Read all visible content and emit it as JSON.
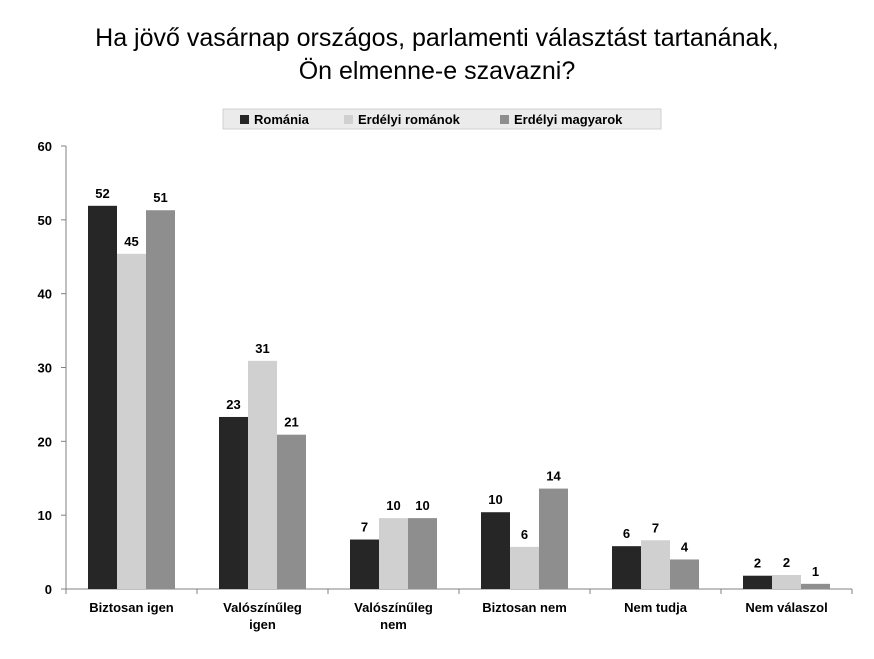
{
  "chart_data": {
    "type": "bar",
    "title_lines": [
      "Ha jövő vasárnap országos, parlamenti választást tartanának,",
      "Ön elmenne-e szavazni?"
    ],
    "categories": [
      [
        "Biztosan igen"
      ],
      [
        "Valószínűleg",
        "igen"
      ],
      [
        "Valószínűleg",
        "nem"
      ],
      [
        "Biztosan nem"
      ],
      [
        "Nem tudja"
      ],
      [
        "Nem válaszol"
      ]
    ],
    "series": [
      {
        "name": "Románia",
        "color": "#262626",
        "values": [
          52,
          23,
          7,
          10,
          6,
          2
        ],
        "plot": [
          51.9,
          23.3,
          6.7,
          10.4,
          5.8,
          1.8
        ]
      },
      {
        "name": "Erdélyi románok",
        "color": "#d0d0d0",
        "values": [
          45,
          31,
          10,
          6,
          7,
          2
        ],
        "plot": [
          45.4,
          30.9,
          9.6,
          5.7,
          6.6,
          1.9
        ]
      },
      {
        "name": "Erdélyi magyarok",
        "color": "#8e8e8e",
        "values": [
          51,
          21,
          10,
          14,
          4,
          1
        ],
        "plot": [
          51.3,
          20.9,
          9.6,
          13.6,
          4.0,
          0.7
        ]
      }
    ],
    "ylim": [
      0,
      60
    ],
    "yticks": [
      0,
      10,
      20,
      30,
      40,
      50,
      60
    ],
    "grid": false,
    "legend_position": "top"
  }
}
